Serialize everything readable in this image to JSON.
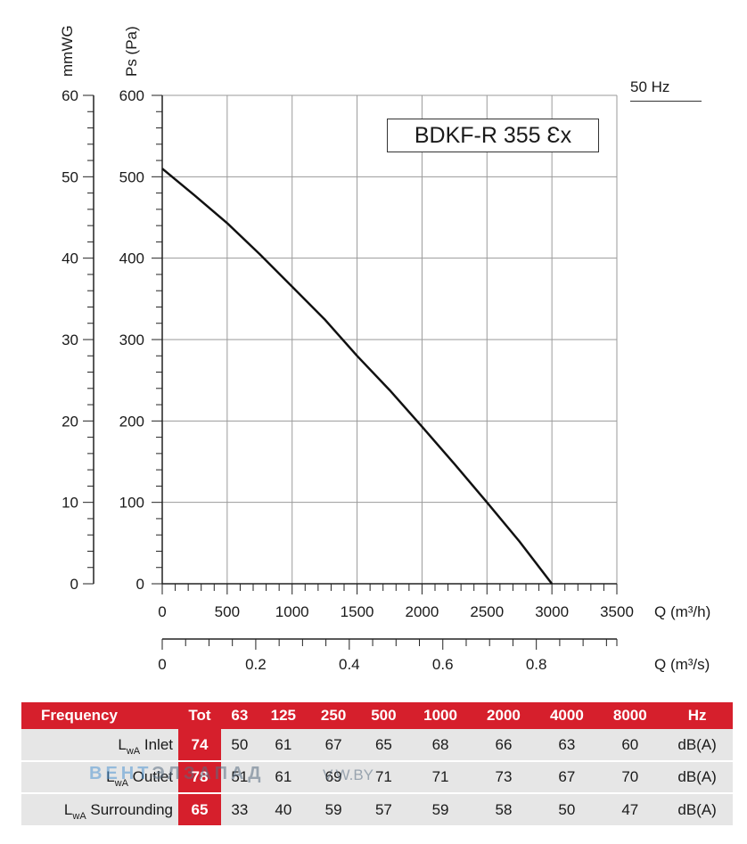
{
  "chart_data": {
    "type": "line",
    "title": "BDKF-R 355 Ɛx",
    "frequency_label": "50 Hz",
    "x_label": "Q (m³/h)",
    "x2_label": "Q (m³/s)",
    "y_label": "Ps (Pa)",
    "y2_label": "mmWG",
    "xlim": [
      0,
      3500
    ],
    "ylim": [
      0,
      600
    ],
    "x_ticks": [
      "0",
      "500",
      "1000",
      "1500",
      "2000",
      "2500",
      "3000",
      "3500"
    ],
    "y_ticks": [
      "0",
      "100",
      "200",
      "300",
      "400",
      "500",
      "600"
    ],
    "y2_ticks": [
      "0",
      "10",
      "20",
      "30",
      "40",
      "50",
      "60"
    ],
    "x2_ticks": [
      "0",
      "0.2",
      "0.4",
      "0.6",
      "0.8"
    ],
    "x2_tick_values": [
      0,
      0.2,
      0.4,
      0.6,
      0.8
    ],
    "x2_max": 0.9722,
    "grid": true,
    "series": [
      {
        "x": [
          0,
          250,
          500,
          750,
          1000,
          1250,
          1500,
          1750,
          2000,
          2250,
          2500,
          2750,
          3000
        ],
        "y": [
          510,
          477,
          443,
          405,
          365,
          325,
          280,
          238,
          193,
          147,
          100,
          52,
          0
        ]
      }
    ]
  },
  "noise_table": {
    "headers": [
      "Frequency",
      "Tot",
      "63",
      "125",
      "250",
      "500",
      "1000",
      "2000",
      "4000",
      "8000",
      "Hz"
    ],
    "rows": [
      {
        "label_main": "L",
        "label_sub": "wA",
        "label_rest": " Inlet",
        "tot": "74",
        "values": [
          "50",
          "61",
          "67",
          "65",
          "68",
          "66",
          "63",
          "60"
        ],
        "unit": "dB(A)"
      },
      {
        "label_main": "L",
        "label_sub": "wA",
        "label_rest": " Outlet",
        "tot": "78",
        "values": [
          "51",
          "61",
          "69",
          "71",
          "71",
          "73",
          "67",
          "70"
        ],
        "unit": "dB(A)"
      },
      {
        "label_main": "L",
        "label_sub": "wA",
        "label_rest": " Surrounding",
        "tot": "65",
        "values": [
          "33",
          "40",
          "59",
          "57",
          "59",
          "58",
          "50",
          "47"
        ],
        "unit": "dB(A)"
      }
    ]
  },
  "watermark": {
    "part1": "ВЕНТ",
    "part2": "ЭЛЗАПАД",
    "url": "V.W.BY"
  },
  "colors": {
    "accent": "#d61f2c",
    "row_bg": "#e6e6e6",
    "grid": "#9a9a9a"
  }
}
